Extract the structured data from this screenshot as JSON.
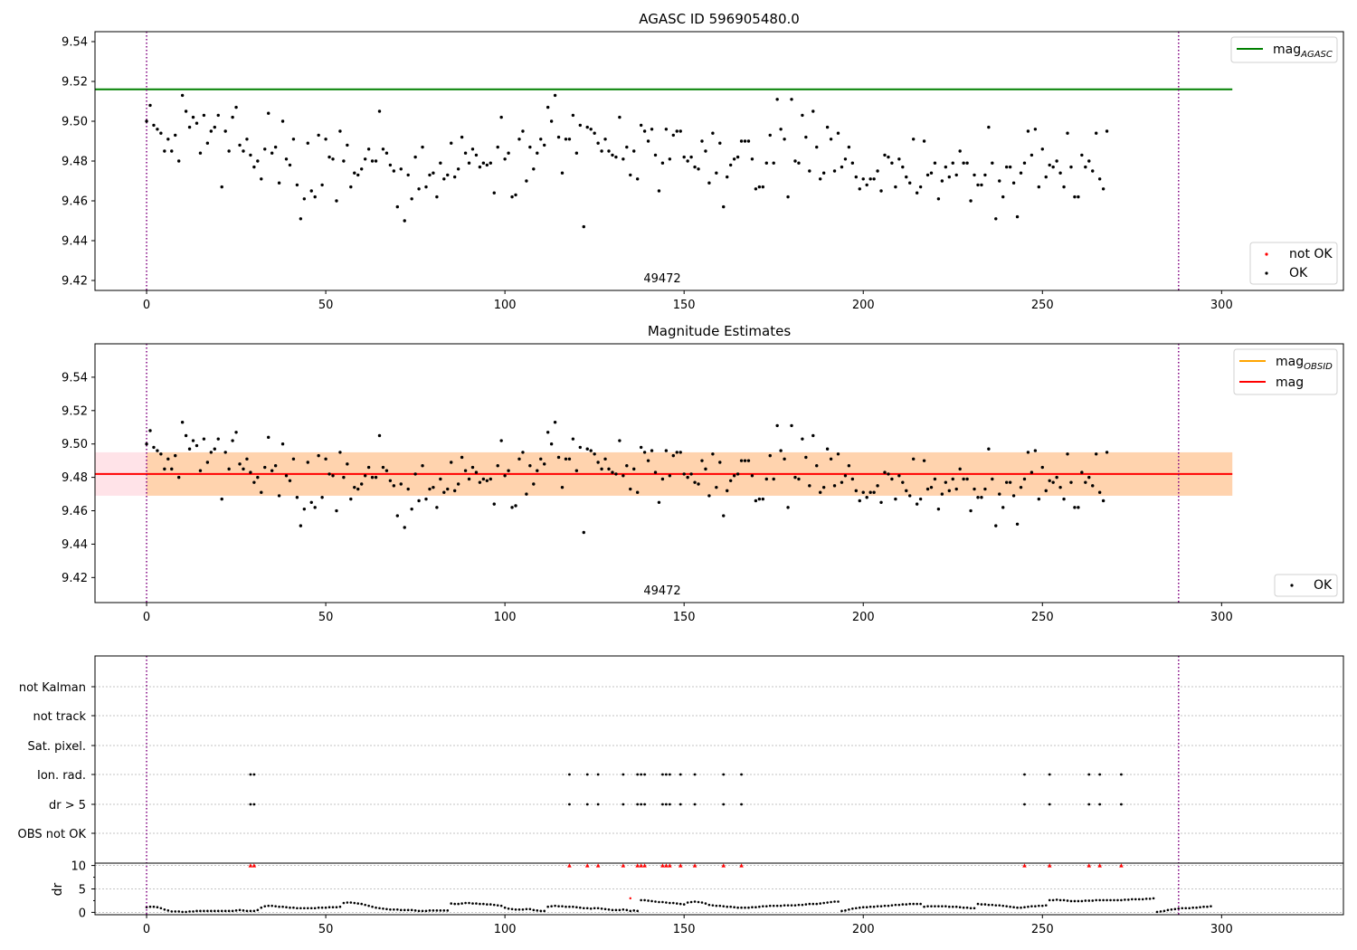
{
  "figure": {
    "background": "#ffffff"
  },
  "chart_data": [
    {
      "type": "scatter",
      "title": "AGASC ID 596905480.0",
      "ylim": [
        9.415,
        9.545
      ],
      "xlim": [
        -14.4,
        334.0
      ],
      "x_ticks": [
        0,
        50,
        100,
        150,
        200,
        250,
        300
      ],
      "y_ticks": [
        9.42,
        9.44,
        9.46,
        9.48,
        9.5,
        9.52,
        9.54
      ],
      "y_tick_labels": [
        "9.42",
        "9.44",
        "9.46",
        "9.48",
        "9.50",
        "9.52",
        "9.54"
      ],
      "obsid_label": "49472",
      "obsid_label_x": 144,
      "vlines": [
        0,
        288
      ],
      "hline": {
        "y": 9.516,
        "x": [
          -14.4,
          303
        ],
        "color": "#008000",
        "name": "AGASC"
      },
      "legend_upper": {
        "position": "upper right",
        "entries": [
          {
            "base": "mag",
            "sub": "AGASC",
            "color": "#008000"
          }
        ]
      },
      "legend_lower": {
        "position": "lower right",
        "entries": [
          {
            "label": "not OK",
            "color": "#ff0000"
          },
          {
            "label": "OK",
            "color": "#000000"
          }
        ]
      },
      "series": [
        {
          "name": "OK",
          "color": "#000000",
          "source": "mag_points"
        }
      ],
      "grid": false
    },
    {
      "type": "scatter",
      "title": "Magnitude Estimates",
      "ylim": [
        9.405,
        9.56
      ],
      "xlim": [
        -14.4,
        334.0
      ],
      "x_ticks": [
        0,
        50,
        100,
        150,
        200,
        250,
        300
      ],
      "y_ticks": [
        9.42,
        9.44,
        9.46,
        9.48,
        9.5,
        9.52,
        9.54
      ],
      "y_tick_labels": [
        "9.42",
        "9.44",
        "9.46",
        "9.48",
        "9.50",
        "9.52",
        "9.54"
      ],
      "obsid_label": "49472",
      "obsid_label_x": 144,
      "vlines": [
        0,
        288
      ],
      "mag_line": {
        "y": 9.482,
        "x": [
          -14.4,
          303
        ],
        "color": "#ff0000"
      },
      "band_pink": {
        "y": [
          9.469,
          9.495
        ],
        "x": [
          -14.4,
          303
        ],
        "color": "#ffc0cb"
      },
      "band_orange": {
        "y": [
          9.469,
          9.495
        ],
        "x": [
          0,
          303
        ],
        "color": "#ffa500"
      },
      "legend_upper": {
        "position": "upper right",
        "entries": [
          {
            "base": "mag",
            "sub": "OBSID",
            "color": "#ffa500"
          },
          {
            "base": "mag",
            "sub": "",
            "color": "#ff0000"
          }
        ]
      },
      "legend_lower": {
        "position": "lower right",
        "entries": [
          {
            "label": "OK",
            "color": "#000000"
          }
        ]
      },
      "series": [
        {
          "name": "OK",
          "color": "#000000",
          "source": "mag_points"
        }
      ],
      "grid": false
    },
    {
      "type": "scatter",
      "title": "",
      "xlim": [
        -14.4,
        334.0
      ],
      "x_ticks": [
        0,
        50,
        100,
        150,
        200,
        250,
        300
      ],
      "vlines": [
        0,
        288
      ],
      "categories": [
        "not Kalman",
        "not track",
        "Sat. pixel.",
        "Ion. rad.",
        "dr > 5",
        "OBS not OK"
      ],
      "flag_points": {
        "Ion. rad.": [
          29,
          30,
          118,
          123,
          126,
          133,
          137,
          138,
          139,
          144,
          145,
          146,
          149,
          153,
          161,
          166,
          245,
          252,
          263,
          266,
          272
        ],
        "dr > 5": [
          29,
          30,
          118,
          123,
          126,
          133,
          137,
          138,
          139,
          144,
          145,
          146,
          149,
          153,
          161,
          166,
          245,
          252,
          263,
          266,
          272
        ]
      },
      "dr_axis": {
        "ylabel": "dr",
        "ylim": [
          -0.5,
          10.5
        ],
        "y_ticks": [
          0,
          5,
          10
        ],
        "y_tick_labels": [
          "0",
          "5",
          "10"
        ]
      },
      "dr_clipped": {
        "y": 10,
        "color": "#ff0000",
        "x": [
          29,
          30,
          118,
          123,
          126,
          133,
          137,
          138,
          139,
          144,
          145,
          146,
          149,
          153,
          161,
          166,
          245,
          252,
          263,
          266,
          272
        ]
      },
      "dr_values": [
        1.1,
        1.2,
        1.2,
        1.1,
        0.9,
        0.6,
        0.4,
        0.2,
        0.2,
        0.2,
        0.1,
        0.1,
        0.2,
        0.2,
        0.3,
        0.3,
        0.3,
        0.3,
        0.3,
        0.3,
        0.3,
        0.3,
        0.3,
        0.3,
        0.3,
        0.4,
        0.5,
        0.4,
        0.3,
        0.3,
        0.3,
        0.5,
        1.0,
        1.3,
        1.4,
        1.4,
        1.3,
        1.2,
        1.2,
        1.1,
        1.0,
        1.0,
        0.9,
        0.9,
        0.9,
        0.9,
        0.9,
        0.9,
        1.0,
        1.0,
        1.0,
        1.1,
        1.1,
        1.1,
        1.2,
        2.0,
        2.1,
        2.1,
        2.0,
        1.9,
        1.8,
        1.6,
        1.4,
        1.2,
        1.0,
        0.9,
        0.8,
        0.7,
        0.6,
        0.6,
        0.6,
        0.5,
        0.5,
        0.5,
        0.5,
        0.4,
        0.3,
        0.3,
        0.3,
        0.4,
        0.4,
        0.4,
        0.4,
        0.4,
        0.4,
        1.9,
        1.8,
        1.8,
        1.9,
        2.0,
        2.0,
        1.9,
        1.9,
        1.8,
        1.8,
        1.7,
        1.7,
        1.6,
        1.5,
        1.4,
        1.0,
        0.8,
        0.7,
        0.6,
        0.6,
        0.6,
        0.7,
        0.7,
        0.5,
        0.4,
        0.3,
        0.3,
        1.2,
        1.3,
        1.4,
        1.3,
        1.3,
        1.2,
        1.2,
        1.2,
        1.1,
        1.0,
        0.9,
        0.9,
        0.8,
        0.9,
        0.9,
        0.8,
        0.7,
        0.6,
        0.5,
        0.5,
        0.5,
        0.6,
        0.5,
        0.3,
        0.4,
        0.3,
        2.6,
        2.6,
        2.5,
        2.4,
        2.3,
        2.2,
        2.2,
        2.1,
        2.0,
        2.0,
        1.9,
        1.8,
        1.7,
        2.1,
        2.2,
        2.3,
        2.2,
        2.1,
        1.9,
        1.6,
        1.5,
        1.4,
        1.4,
        1.3,
        1.2,
        1.2,
        1.1,
        1.0,
        1.0,
        1.0,
        1.0,
        1.1,
        1.1,
        1.2,
        1.3,
        1.3,
        1.4,
        1.4,
        1.4,
        1.4,
        1.5,
        1.5,
        1.5,
        1.5,
        1.6,
        1.6,
        1.7,
        1.8,
        1.8,
        1.8,
        1.9,
        2.0,
        2.1,
        2.2,
        2.3,
        2.3,
        0.3,
        0.4,
        0.6,
        0.8,
        0.9,
        1.0,
        1.1,
        1.1,
        1.2,
        1.2,
        1.3,
        1.3,
        1.4,
        1.4,
        1.5,
        1.6,
        1.6,
        1.7,
        1.7,
        1.8,
        1.8,
        1.8,
        1.8,
        1.2,
        1.3,
        1.3,
        1.3,
        1.3,
        1.3,
        1.3,
        1.2,
        1.2,
        1.2,
        1.1,
        1.0,
        1.0,
        0.9,
        0.9,
        1.8,
        1.7,
        1.7,
        1.6,
        1.6,
        1.5,
        1.5,
        1.4,
        1.3,
        1.2,
        1.1,
        1.0,
        1.0,
        1.1,
        1.2,
        1.3,
        1.3,
        1.4,
        1.4,
        1.5,
        2.6,
        2.6,
        2.7,
        2.6,
        2.6,
        2.5,
        2.4,
        2.4,
        2.4,
        2.4,
        2.5,
        2.5,
        2.5,
        2.6,
        2.6,
        2.6,
        2.6,
        2.6,
        2.6,
        2.6,
        2.6,
        2.7,
        2.7,
        2.8,
        2.8,
        2.8,
        2.8,
        2.9,
        2.9,
        3.0,
        0.1,
        0.2,
        0.3,
        0.5,
        0.6,
        0.7,
        0.8,
        0.9,
        0.9,
        0.9,
        1.0,
        1.0,
        1.1,
        1.2,
        1.2,
        1.3
      ],
      "dr_outlier": {
        "x": 135,
        "y": 3.0,
        "color": "#ff0000"
      },
      "grid": true
    }
  ],
  "mag_points": [
    9.5,
    9.508,
    9.498,
    9.496,
    9.494,
    9.485,
    9.491,
    9.485,
    9.493,
    9.48,
    9.513,
    9.505,
    9.497,
    9.502,
    9.499,
    9.484,
    9.503,
    9.489,
    9.495,
    9.497,
    9.503,
    9.467,
    9.495,
    9.485,
    9.502,
    9.507,
    9.488,
    9.485,
    9.491,
    9.483,
    9.477,
    9.48,
    9.471,
    9.486,
    9.504,
    9.484,
    9.487,
    9.469,
    9.5,
    9.481,
    9.478,
    9.491,
    9.468,
    9.451,
    9.461,
    9.489,
    9.465,
    9.462,
    9.493,
    9.468,
    9.491,
    9.482,
    9.481,
    9.46,
    9.495,
    9.48,
    9.488,
    9.467,
    9.474,
    9.473,
    9.476,
    9.481,
    9.486,
    9.48,
    9.48,
    9.505,
    9.486,
    9.484,
    9.478,
    9.475,
    9.457,
    9.476,
    9.45,
    9.473,
    9.461,
    9.482,
    9.466,
    9.487,
    9.467,
    9.473,
    9.474,
    9.462,
    9.479,
    9.471,
    9.473,
    9.489,
    9.472,
    9.476,
    9.492,
    9.484,
    9.479,
    9.486,
    9.483,
    9.477,
    9.479,
    9.478,
    9.479,
    9.464,
    9.487,
    9.502,
    9.481,
    9.484,
    9.462,
    9.463,
    9.491,
    9.495,
    9.47,
    9.487,
    9.476,
    9.484,
    9.491,
    9.488,
    9.507,
    9.5,
    9.513,
    9.492,
    9.474,
    9.491,
    9.491,
    9.503,
    9.484,
    9.498,
    9.447,
    9.497,
    9.496,
    9.494,
    9.489,
    9.485,
    9.491,
    9.485,
    9.483,
    9.482,
    9.502,
    9.481,
    9.487,
    9.473,
    9.485,
    9.471,
    9.498,
    9.495,
    9.49,
    9.496,
    9.483,
    9.465,
    9.479,
    9.496,
    9.481,
    9.493,
    9.495,
    9.495,
    9.482,
    9.48,
    9.482,
    9.477,
    9.476,
    9.49,
    9.485,
    9.469,
    9.494,
    9.474,
    9.489,
    9.457,
    9.472,
    9.478,
    9.481,
    9.482,
    9.49,
    9.49,
    9.49,
    9.481,
    9.466,
    9.467,
    9.467,
    9.479,
    9.493,
    9.479,
    9.511,
    9.496,
    9.491,
    9.462,
    9.511,
    9.48,
    9.479,
    9.503,
    9.492,
    9.475,
    9.505,
    9.487,
    9.471,
    9.474,
    9.497,
    9.491,
    9.475,
    9.494,
    9.477,
    9.481,
    9.487,
    9.479,
    9.472,
    9.466,
    9.471,
    9.468,
    9.471,
    9.471,
    9.475,
    9.465,
    9.483,
    9.482,
    9.479,
    9.467,
    9.481,
    9.477,
    9.472,
    9.469,
    9.491,
    9.464,
    9.467,
    9.49,
    9.473,
    9.474,
    9.479,
    9.461,
    9.47,
    9.477,
    9.472,
    9.479,
    9.473,
    9.485,
    9.479,
    9.479,
    9.46,
    9.473,
    9.468,
    9.468,
    9.473,
    9.497,
    9.479,
    9.451,
    9.47,
    9.462,
    9.477,
    9.477,
    9.469,
    9.452,
    9.474,
    9.479,
    9.495,
    9.483,
    9.496,
    9.467,
    9.486,
    9.472,
    9.478,
    9.477,
    9.48,
    9.474,
    9.467,
    9.494,
    9.477,
    9.462,
    9.462,
    9.483,
    9.477,
    9.48,
    9.475,
    9.494,
    9.471,
    9.466,
    9.495
  ]
}
